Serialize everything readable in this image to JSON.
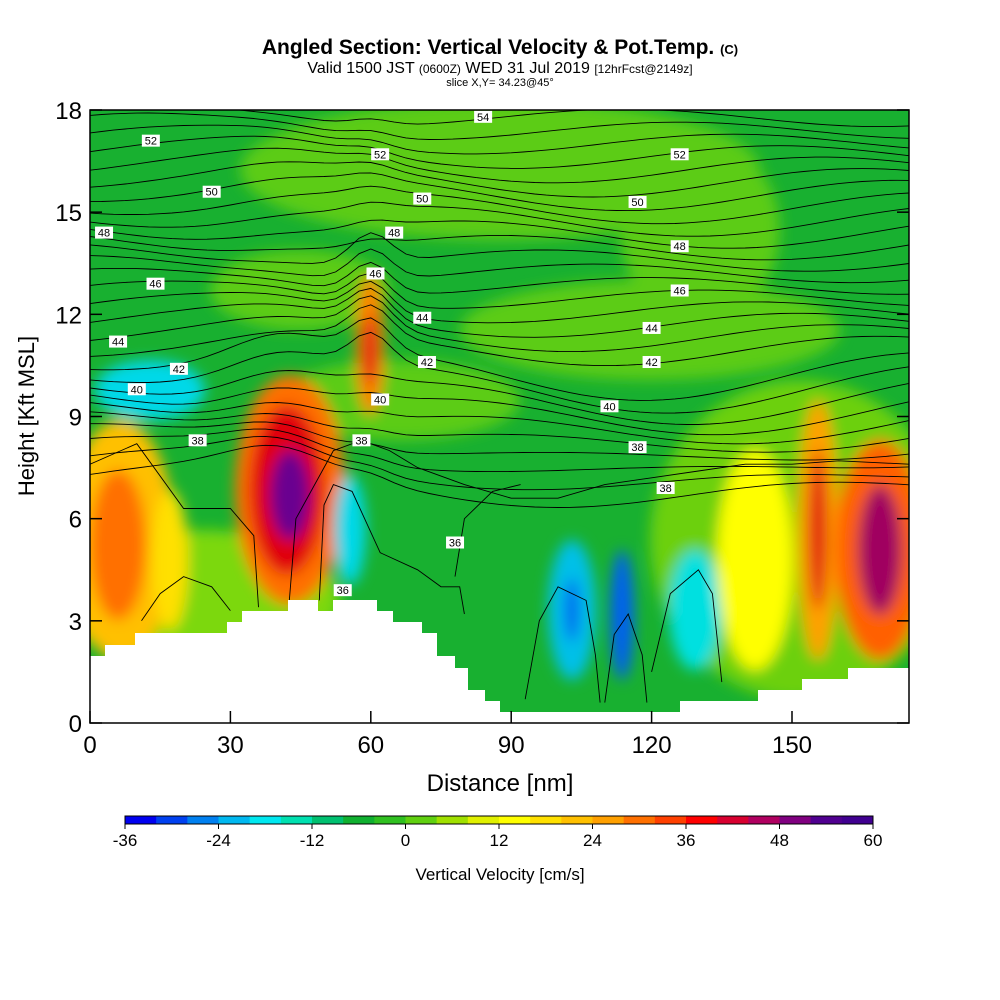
{
  "header": {
    "title": "Angled Section: Vertical Velocity & Pot.Temp.",
    "title_unit": "(C)",
    "valid_prefix": "Valid 1500 JST",
    "valid_utc": "(0600Z)",
    "valid_date": "WED 31 Jul 2019",
    "forecast": "[12hrFcst@2149z]",
    "slice": "slice X,Y= 34.23@45°"
  },
  "chart_data": {
    "type": "heatmap",
    "xlabel": "Distance [nm]",
    "ylabel": "Height [Kft MSL]",
    "xlim": [
      0,
      175
    ],
    "ylim": [
      0,
      18
    ],
    "xticks": [
      0,
      30,
      60,
      90,
      120,
      150
    ],
    "yticks": [
      0,
      3,
      6,
      9,
      12,
      15,
      18
    ],
    "colorbar": {
      "label": "Vertical Velocity [cm/s]",
      "ticks": [
        -36,
        -24,
        -12,
        0,
        12,
        24,
        36,
        48,
        60
      ],
      "min": -36,
      "max": 60,
      "step": 4,
      "colors": [
        "#0000f0",
        "#0040f0",
        "#0080f0",
        "#00b8f0",
        "#00e8f0",
        "#00e0b0",
        "#00c070",
        "#10b030",
        "#30c020",
        "#60d010",
        "#a0e000",
        "#e0f000",
        "#ffff00",
        "#ffe000",
        "#ffc000",
        "#ffa000",
        "#ff7000",
        "#ff4000",
        "#ff0000",
        "#d80030",
        "#b00060",
        "#800080",
        "#500090",
        "#400090"
      ]
    },
    "theta_labels": [
      {
        "x": 13,
        "y": 17.1,
        "v": "52"
      },
      {
        "x": 62,
        "y": 16.7,
        "v": "52"
      },
      {
        "x": 126,
        "y": 16.7,
        "v": "52"
      },
      {
        "x": 84,
        "y": 17.8,
        "v": "54"
      },
      {
        "x": 26,
        "y": 15.6,
        "v": "50"
      },
      {
        "x": 71,
        "y": 15.4,
        "v": "50"
      },
      {
        "x": 117,
        "y": 15.3,
        "v": "50"
      },
      {
        "x": 3,
        "y": 14.4,
        "v": "48"
      },
      {
        "x": 65,
        "y": 14.4,
        "v": "48"
      },
      {
        "x": 126,
        "y": 14.0,
        "v": "48"
      },
      {
        "x": 14,
        "y": 12.9,
        "v": "46"
      },
      {
        "x": 61,
        "y": 13.2,
        "v": "46"
      },
      {
        "x": 126,
        "y": 12.7,
        "v": "46"
      },
      {
        "x": 6,
        "y": 11.2,
        "v": "44"
      },
      {
        "x": 71,
        "y": 11.9,
        "v": "44"
      },
      {
        "x": 120,
        "y": 11.6,
        "v": "44"
      },
      {
        "x": 19,
        "y": 10.4,
        "v": "42"
      },
      {
        "x": 72,
        "y": 10.6,
        "v": "42"
      },
      {
        "x": 120,
        "y": 10.6,
        "v": "42"
      },
      {
        "x": 10,
        "y": 9.8,
        "v": "40"
      },
      {
        "x": 62,
        "y": 9.5,
        "v": "40"
      },
      {
        "x": 111,
        "y": 9.3,
        "v": "40"
      },
      {
        "x": 23,
        "y": 8.3,
        "v": "38"
      },
      {
        "x": 58,
        "y": 8.3,
        "v": "38"
      },
      {
        "x": 117,
        "y": 8.1,
        "v": "38"
      },
      {
        "x": 123,
        "y": 6.9,
        "v": "38"
      },
      {
        "x": 78,
        "y": 5.3,
        "v": "36"
      },
      {
        "x": 54,
        "y": 3.9,
        "v": "36"
      }
    ]
  }
}
